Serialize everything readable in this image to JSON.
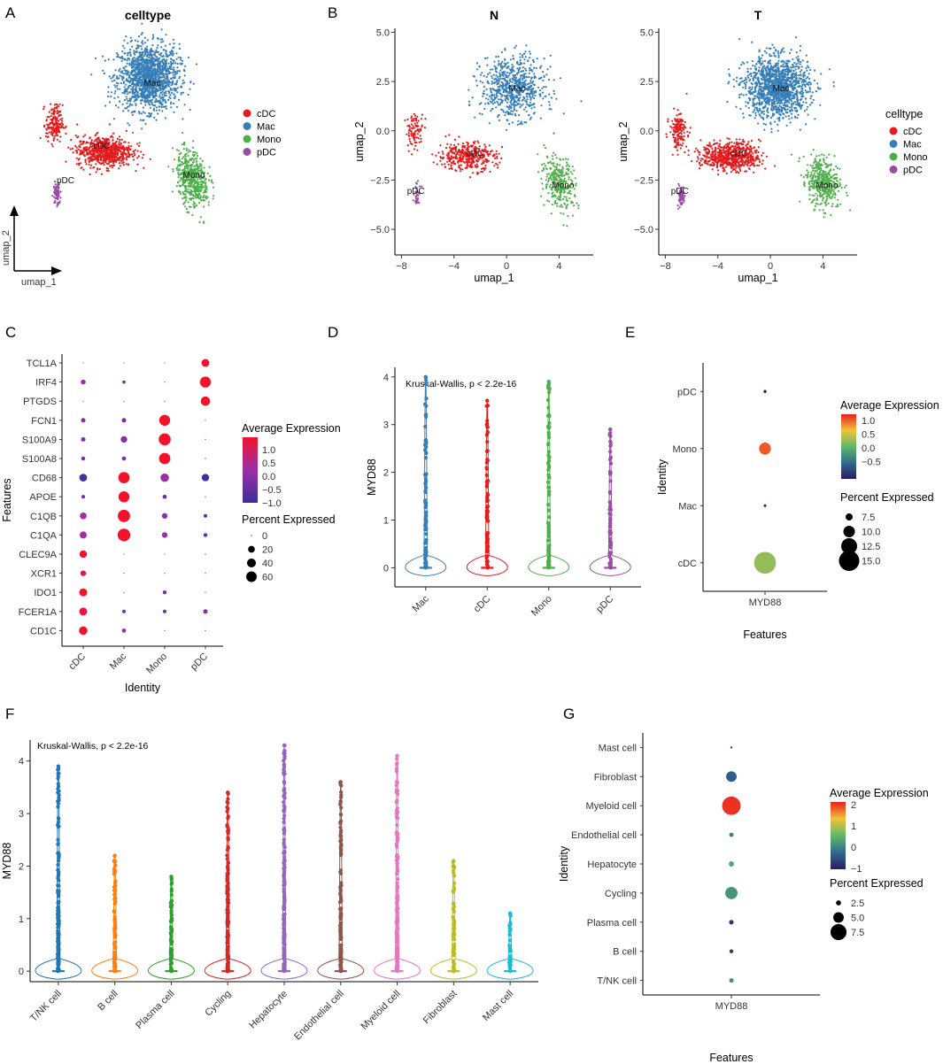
{
  "panels": [
    "A",
    "B",
    "C",
    "D",
    "E",
    "F",
    "G"
  ],
  "colors": {
    "cDC": "#E41A1C",
    "Mac": "#377EB8",
    "Mono": "#4DAF4A",
    "pDC": "#984EA3",
    "T/NK cell": "#1F77B4",
    "B cell": "#FF7F0E",
    "Plasma cell": "#2CA02C",
    "Cycling": "#D62728",
    "Hepatocyte": "#9467BD",
    "Endothelial cell": "#8C564B",
    "Myeloid cell": "#E377C2",
    "Fibroblast": "#BCBD22",
    "Mast cell": "#17BECF"
  },
  "chart_data": [
    {
      "panel": "A",
      "type": "scatter",
      "title": "celltype",
      "xlabel": "umap_1",
      "ylabel": "umap_2",
      "legend": [
        "cDC",
        "Mac",
        "Mono",
        "pDC"
      ],
      "cluster_labels": [
        "Mac",
        "cDC",
        "pDC",
        "Mono"
      ]
    },
    {
      "panel": "B-N",
      "type": "scatter",
      "title": "N",
      "xlabel": "umap_1",
      "ylabel": "umap_2",
      "xticks": [
        -8,
        -4,
        0,
        4
      ],
      "yticks": [
        5.0,
        2.5,
        0.0,
        -2.5,
        -5.0
      ],
      "xlim": [
        -8.5,
        6.6
      ],
      "ylim": [
        -6.3,
        5.2
      ],
      "cluster_labels": [
        "Mac",
        "cDC",
        "pDC",
        "Mono"
      ]
    },
    {
      "panel": "B-T",
      "type": "scatter",
      "title": "T",
      "xlabel": "umap_1",
      "ylabel": "umap_2",
      "xticks": [
        -8,
        -4,
        0,
        4
      ],
      "yticks": [
        5.0,
        2.5,
        0.0,
        -2.5,
        -5.0
      ],
      "xlim": [
        -8.5,
        6.6
      ],
      "ylim": [
        -6.3,
        5.2
      ],
      "legend_title": "celltype",
      "legend": [
        "cDC",
        "Mac",
        "Mono",
        "pDC"
      ],
      "cluster_labels": [
        "Mac",
        "cDC",
        "pDC",
        "Mono"
      ]
    },
    {
      "panel": "C",
      "type": "dot",
      "xlabel": "Identity",
      "ylabel": "Features",
      "identities": [
        "cDC",
        "Mac",
        "Mono",
        "pDC"
      ],
      "features": [
        "TCL1A",
        "IRF4",
        "PTGDS",
        "FCN1",
        "S100A9",
        "S100A8",
        "CD68",
        "APOE",
        "C1QB",
        "C1QA",
        "CLEC9A",
        "XCR1",
        "IDO1",
        "FCER1A",
        "CD1C"
      ],
      "avg_expression": [
        [
          -0.5,
          -0.5,
          -0.5,
          1.4
        ],
        [
          0.2,
          -0.4,
          -0.5,
          1.5
        ],
        [
          -0.3,
          -0.5,
          -0.5,
          1.5
        ],
        [
          0.0,
          -0.1,
          1.5,
          -0.5
        ],
        [
          -0.1,
          0.0,
          1.5,
          -0.5
        ],
        [
          -0.2,
          -0.1,
          1.5,
          -0.5
        ],
        [
          -0.8,
          1.5,
          0.2,
          -0.9
        ],
        [
          -0.3,
          1.5,
          -0.3,
          -0.5
        ],
        [
          0.3,
          1.5,
          0.0,
          -0.5
        ],
        [
          0.3,
          1.5,
          0.2,
          -0.4
        ],
        [
          1.5,
          -0.5,
          -0.5,
          -0.5
        ],
        [
          1.3,
          -0.5,
          -0.5,
          -0.5
        ],
        [
          1.5,
          -0.5,
          -0.3,
          -0.5
        ],
        [
          1.3,
          -0.1,
          -0.3,
          0.0
        ],
        [
          1.5,
          0.4,
          -0.5,
          -0.5
        ]
      ],
      "pct_expressed": [
        [
          1,
          1,
          1,
          30
        ],
        [
          8,
          2,
          1,
          65
        ],
        [
          1,
          1,
          1,
          45
        ],
        [
          6,
          6,
          65,
          1
        ],
        [
          6,
          18,
          80,
          1
        ],
        [
          4,
          5,
          70,
          1
        ],
        [
          28,
          70,
          35,
          25
        ],
        [
          3,
          65,
          5,
          1
        ],
        [
          20,
          85,
          12,
          3
        ],
        [
          22,
          90,
          12,
          4
        ],
        [
          25,
          1,
          1,
          1
        ],
        [
          12,
          1,
          1,
          1
        ],
        [
          30,
          1,
          4,
          1
        ],
        [
          30,
          3,
          3,
          6
        ],
        [
          35,
          5,
          1,
          1
        ]
      ],
      "color_legend_title": "Average Expression",
      "color_ticks": [
        1.0,
        0.5,
        0.0,
        -0.5,
        -1.0
      ],
      "size_legend_title": "Percent Expressed",
      "size_ticks": [
        0,
        20,
        40,
        60
      ]
    },
    {
      "panel": "D",
      "type": "violin",
      "ylabel": "MYD88",
      "categories": [
        "Mac",
        "cDC",
        "Mono",
        "pDC"
      ],
      "max_values": [
        4.0,
        3.5,
        3.9,
        2.9
      ],
      "median": 0,
      "ylim": [
        -0.4,
        4.2
      ],
      "yticks": [
        0,
        1,
        2,
        3,
        4
      ],
      "annotation": "Kruskal-Wallis, p < 2.2e-16"
    },
    {
      "panel": "E",
      "type": "dot",
      "xlabel": "Features",
      "ylabel": "Identity",
      "feature": "MYD88",
      "identities": [
        "cDC",
        "Mac",
        "Mono",
        "pDC"
      ],
      "avg_expression": [
        0.3,
        -1.0,
        1.0,
        -1.0
      ],
      "pct_expressed": [
        15.8,
        5.0,
        10.2,
        5.2
      ],
      "color_legend_title": "Average Expression",
      "color_ticks": [
        1.0,
        0.5,
        0.0,
        -0.5
      ],
      "size_legend_title": "Percent Expressed",
      "size_ticks": [
        7.5,
        10.0,
        12.5,
        15.0
      ]
    },
    {
      "panel": "F",
      "type": "violin",
      "ylabel": "MYD88",
      "categories": [
        "T/NK cell",
        "B cell",
        "Plasma cell",
        "Cycling",
        "Hepatocyte",
        "Endothelial cell",
        "Myeloid cell",
        "Fibroblast",
        "Mast cell"
      ],
      "max_values": [
        3.9,
        2.2,
        1.8,
        3.4,
        4.3,
        3.6,
        4.1,
        2.1,
        1.1
      ],
      "median": 0,
      "ylim": [
        -0.2,
        4.4
      ],
      "yticks": [
        0,
        1,
        2,
        3,
        4
      ],
      "annotation": "Kruskal-Wallis, p < 2.2e-16"
    },
    {
      "panel": "G",
      "type": "dot",
      "xlabel": "Features",
      "ylabel": "Identity",
      "feature": "MYD88",
      "identities": [
        "T/NK cell",
        "B cell",
        "Plasma cell",
        "Cycling",
        "Hepatocyte",
        "Endothelial cell",
        "Myeloid cell",
        "Fibroblast",
        "Mast cell"
      ],
      "avg_expression": [
        0.0,
        -1.0,
        -1.0,
        0.0,
        0.2,
        -0.2,
        2.0,
        -0.6,
        -0.8
      ],
      "pct_expressed": [
        2.3,
        2.0,
        2.3,
        5.8,
        2.6,
        2.2,
        8.6,
        5.0,
        1.2
      ],
      "color_legend_title": "Average Expression",
      "color_ticks": [
        2,
        1,
        0,
        -1
      ],
      "size_legend_title": "Percent Expressed",
      "size_ticks": [
        2.5,
        5.0,
        7.5
      ]
    }
  ]
}
